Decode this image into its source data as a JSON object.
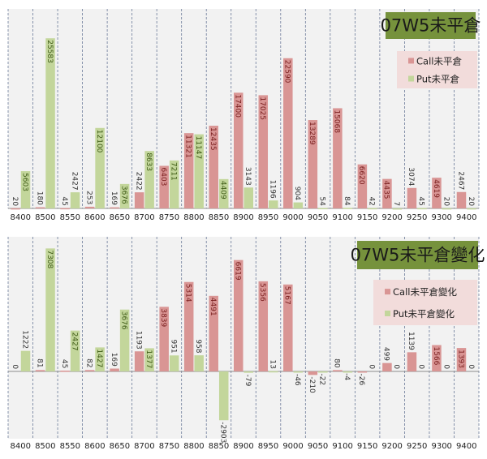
{
  "colors": {
    "call": "#d99594",
    "put": "#c3d69b",
    "call_label": "#7a1f1f",
    "put_label": "#3d5a14",
    "title_bg": "#76923c",
    "legend_bg": "#f2dcdb",
    "plot_bg": "#f2f2f2",
    "grid": "#6b7a99"
  },
  "chart_data": [
    {
      "type": "bar",
      "title": "07W5未平倉",
      "categories": [
        "8400",
        "8500",
        "8550",
        "8600",
        "8650",
        "8700",
        "8750",
        "8800",
        "8850",
        "8900",
        "8950",
        "9000",
        "9050",
        "9100",
        "9150",
        "9200",
        "9250",
        "9300",
        "9400"
      ],
      "series": [
        {
          "name": "Call未平倉",
          "values": [
            20,
            180,
            45,
            253,
            169,
            2422,
            6403,
            11321,
            12435,
            17400,
            17025,
            22590,
            13289,
            15068,
            6620,
            4435,
            3074,
            4619,
            2467
          ]
        },
        {
          "name": "Put未平倉",
          "values": [
            5603,
            25583,
            2427,
            12100,
            3676,
            8633,
            7211,
            11147,
            4409,
            3143,
            1196,
            904,
            54,
            84,
            42,
            7,
            45,
            20,
            20
          ]
        }
      ],
      "ylim": [
        0,
        30000
      ],
      "grid": "vertical dashed",
      "legend": "top-right"
    },
    {
      "type": "bar",
      "title": "07W5未平倉變化",
      "categories": [
        "8400",
        "8500",
        "8550",
        "8600",
        "8650",
        "8700",
        "8750",
        "8800",
        "8850",
        "8900",
        "8950",
        "9000",
        "9050",
        "9100",
        "9150",
        "9200",
        "9250",
        "9300",
        "9400"
      ],
      "series": [
        {
          "name": "Call未平倉變化",
          "values": [
            0,
            81,
            45,
            82,
            169,
            1193,
            3839,
            5314,
            4491,
            6619,
            5356,
            5167,
            -210,
            80,
            -26,
            499,
            1139,
            1566,
            1393
          ]
        },
        {
          "name": "Put未平倉變化",
          "values": [
            1222,
            7308,
            2427,
            1427,
            3676,
            1377,
            951,
            958,
            -2903,
            -79,
            13,
            -46,
            -22,
            -4,
            0,
            0,
            0,
            0,
            0
          ]
        }
      ],
      "ylim": [
        -4000,
        8000
      ],
      "grid": "vertical dashed",
      "legend": "top-right"
    }
  ]
}
